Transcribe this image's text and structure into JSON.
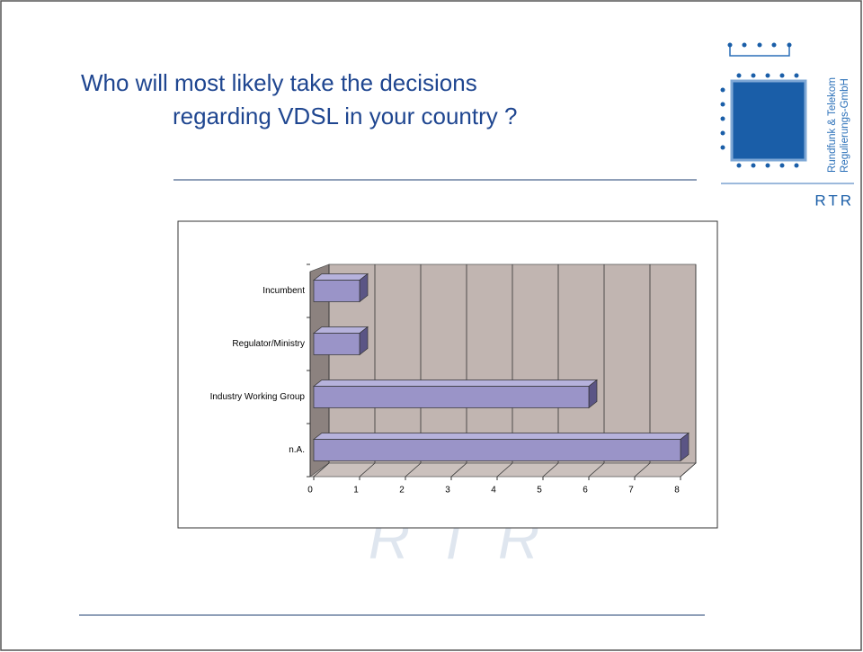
{
  "title_lines": [
    "Who will most likely take the decisions",
    "regarding VDSL in your country ?"
  ],
  "logo": {
    "name_lines": [
      "Rundfunk & Telekom",
      "Regulierungs-GmbH"
    ],
    "abbr": "RTR"
  },
  "watermark": "RTR",
  "chart_data": {
    "type": "bar",
    "orientation": "horizontal",
    "categories": [
      "Incumbent",
      "Regulator/Ministry",
      "Industry Working Group",
      "n.A."
    ],
    "values": [
      1,
      1,
      6,
      8
    ],
    "color": "#9a94c8",
    "xlim": [
      0,
      8
    ],
    "xticks": [
      0,
      1,
      2,
      3,
      4,
      5,
      6,
      7,
      8
    ],
    "grid": true
  }
}
